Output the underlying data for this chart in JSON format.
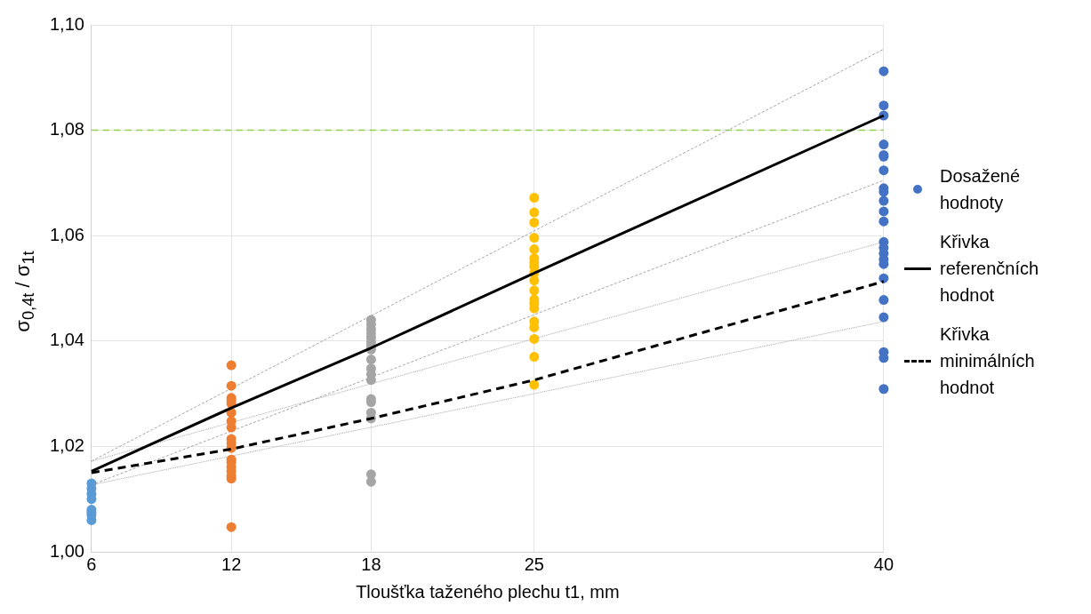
{
  "chart_data": {
    "type": "scatter",
    "xlabel": "Tloušťka taženého plechu t1, mm",
    "ylabel": "σ$_{0,4t}$ / σ$_{1t}$",
    "xlim": [
      6,
      40
    ],
    "xticks": [
      6,
      12,
      18,
      25,
      40
    ],
    "ylim": [
      1,
      1.1
    ],
    "yticks": [
      {
        "value": 1,
        "label": "1,00"
      },
      {
        "value": 1.02,
        "label": "1,02"
      },
      {
        "value": 1.04,
        "label": "1,04"
      },
      {
        "value": 1.06,
        "label": "1,06"
      },
      {
        "value": 1.08,
        "label": "1,08"
      },
      {
        "value": 1.1,
        "label": "1,10"
      }
    ],
    "grid": true,
    "legend": "right",
    "ref_lines": [
      {
        "axis": "y",
        "value": 1.08,
        "color": "#92d050",
        "line_style": "dashed"
      }
    ],
    "series": [
      {
        "name": "Dosažené hodnoty",
        "marker": "circle",
        "color": "#4472c4",
        "x": [
          6,
          6,
          6,
          6,
          6,
          6,
          6,
          6,
          12,
          12,
          12,
          12,
          12,
          12,
          12,
          12,
          12,
          12,
          12,
          12,
          12,
          12,
          12,
          12,
          12,
          12,
          18,
          18,
          18,
          18,
          18,
          18,
          18,
          18,
          18,
          18,
          18,
          18,
          18,
          18,
          18,
          18,
          18,
          18,
          25,
          25,
          25,
          25,
          25,
          25,
          25,
          25,
          25,
          25,
          25,
          25,
          25,
          25,
          25,
          25,
          25,
          25,
          25,
          40,
          40,
          40,
          40,
          40,
          40,
          40,
          40,
          40,
          40,
          40,
          40,
          40,
          40,
          40,
          40,
          40,
          40,
          40,
          40,
          40,
          40,
          40
        ],
        "values": [
          1.013,
          1.012,
          1.011,
          1.01,
          1.008,
          1.0075,
          1.007,
          1.006,
          1.0354,
          1.0315,
          1.0292,
          1.0287,
          1.0281,
          1.0264,
          1.0248,
          1.0236,
          1.0214,
          1.0206,
          1.0197,
          1.0175,
          1.017,
          1.0161,
          1.0153,
          1.0144,
          1.0139,
          1.0047,
          1.044,
          1.0432,
          1.0423,
          1.0415,
          1.0407,
          1.0398,
          1.039,
          1.0384,
          1.0365,
          1.0348,
          1.0337,
          1.0326,
          1.029,
          1.0284,
          1.0264,
          1.0253,
          1.0147,
          1.0133,
          1.0672,
          1.0644,
          1.0625,
          1.0596,
          1.0574,
          1.0557,
          1.0549,
          1.0541,
          1.0529,
          1.0515,
          1.0496,
          1.0479,
          1.0471,
          1.0462,
          1.0437,
          1.0426,
          1.0404,
          1.037,
          1.0317,
          1.0912,
          1.0847,
          1.0828,
          1.0773,
          1.0753,
          1.075,
          1.0724,
          1.069,
          1.0683,
          1.0666,
          1.0646,
          1.0627,
          1.0588,
          1.0577,
          1.0566,
          1.0555,
          1.0546,
          1.0519,
          1.0478,
          1.0445,
          1.0379,
          1.0368,
          1.0309
        ],
        "colors": [
          "#5b9bd5",
          "#5b9bd5",
          "#5b9bd5",
          "#5b9bd5",
          "#5b9bd5",
          "#5b9bd5",
          "#5b9bd5",
          "#5b9bd5",
          "#ed7d31",
          "#ed7d31",
          "#ed7d31",
          "#ed7d31",
          "#ed7d31",
          "#ed7d31",
          "#ed7d31",
          "#ed7d31",
          "#ed7d31",
          "#ed7d31",
          "#ed7d31",
          "#ed7d31",
          "#ed7d31",
          "#ed7d31",
          "#ed7d31",
          "#ed7d31",
          "#ed7d31",
          "#ed7d31",
          "#a5a5a5",
          "#a5a5a5",
          "#a5a5a5",
          "#a5a5a5",
          "#a5a5a5",
          "#a5a5a5",
          "#a5a5a5",
          "#a5a5a5",
          "#a5a5a5",
          "#a5a5a5",
          "#a5a5a5",
          "#a5a5a5",
          "#a5a5a5",
          "#a5a5a5",
          "#a5a5a5",
          "#a5a5a5",
          "#a5a5a5",
          "#a5a5a5",
          "#ffc000",
          "#ffc000",
          "#ffc000",
          "#ffc000",
          "#ffc000",
          "#ffc000",
          "#ffc000",
          "#ffc000",
          "#ffc000",
          "#ffc000",
          "#ffc000",
          "#ffc000",
          "#ffc000",
          "#ffc000",
          "#ffc000",
          "#ffc000",
          "#ffc000",
          "#ffc000",
          "#ffc000",
          "#4472c4",
          "#4472c4",
          "#4472c4",
          "#4472c4",
          "#4472c4",
          "#4472c4",
          "#4472c4",
          "#4472c4",
          "#4472c4",
          "#4472c4",
          "#4472c4",
          "#4472c4",
          "#4472c4",
          "#4472c4",
          "#4472c4",
          "#4472c4",
          "#4472c4",
          "#4472c4",
          "#4472c4",
          "#4472c4",
          "#4472c4",
          "#4472c4",
          "#4472c4"
        ]
      },
      {
        "type": "line",
        "marker": "none",
        "line_style": "dashed",
        "color": "#a6a6a6",
        "x": [
          6,
          40
        ],
        "values": [
          1.0172,
          1.0954
        ]
      },
      {
        "type": "line",
        "marker": "none",
        "line_style": "dashed",
        "color": "#a6a6a6",
        "x": [
          6,
          40
        ],
        "values": [
          1.0127,
          1.0705
        ]
      },
      {
        "type": "line",
        "marker": "none",
        "line_style": "dotted",
        "color": "#a6a6a6",
        "x": [
          6,
          40
        ],
        "values": [
          1.0172,
          1.0588
        ]
      },
      {
        "type": "line",
        "marker": "none",
        "line_style": "dotted",
        "color": "#a6a6a6",
        "x": [
          6,
          40
        ],
        "values": [
          1.0127,
          1.0437
        ]
      },
      {
        "name": "Křivka referenčních hodnot",
        "type": "line",
        "marker": "none",
        "line_style": "solid",
        "color": "#000000",
        "x": [
          6,
          12,
          18,
          25,
          40
        ],
        "values": [
          1.0153,
          1.0273,
          1.0387,
          1.0529,
          1.0828
        ]
      },
      {
        "name": "Křivka minimálních hodnot",
        "type": "line",
        "marker": "none",
        "line_style": "dashed",
        "color": "#000000",
        "x": [
          6,
          12,
          18,
          25,
          40
        ],
        "values": [
          1.015,
          1.0195,
          1.0253,
          1.0326,
          1.0513
        ]
      }
    ]
  }
}
